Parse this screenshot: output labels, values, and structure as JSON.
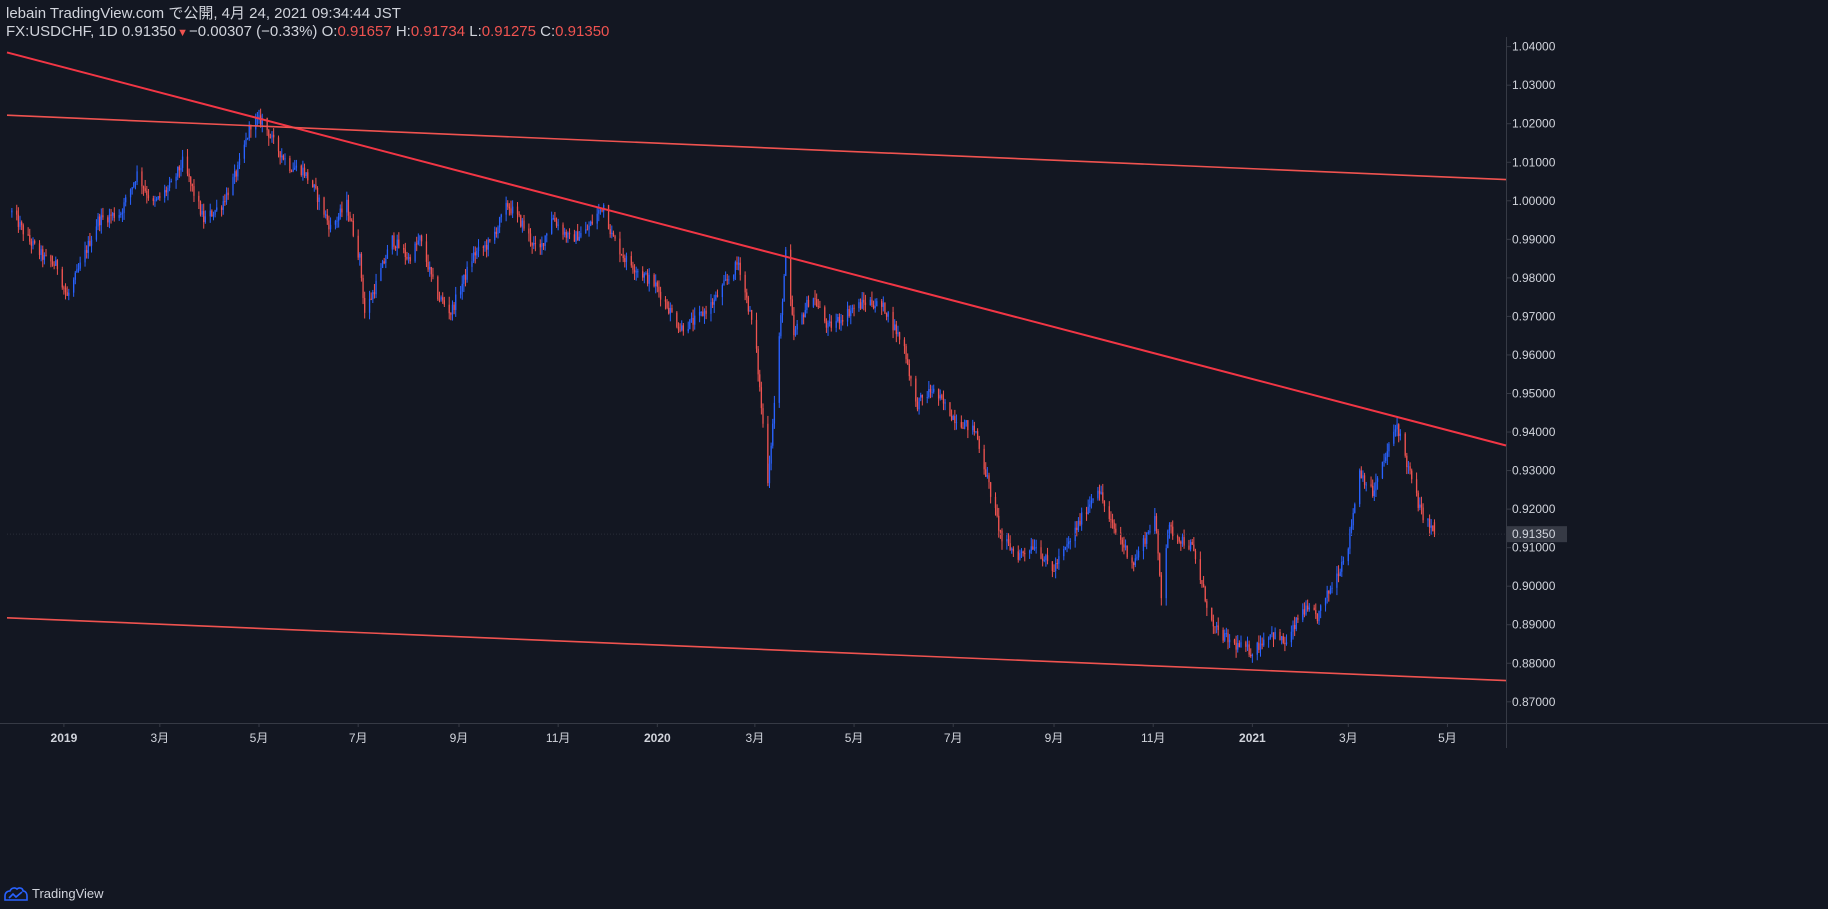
{
  "header": {
    "line1": "lebain TradingView.com で公開, 4月 24, 2021 09:34:44 JST",
    "symbol": "FX:USDCHF, 1D",
    "last": "0.91350",
    "change_arrow": "▼",
    "change": "−0.00307 (−0.33%)",
    "o_label": "O:",
    "o_value": "0.91657",
    "h_label": "H:",
    "h_value": "0.91734",
    "l_label": "L:",
    "l_value": "0.91275",
    "c_label": "C:",
    "c_value": "0.91350"
  },
  "footer": {
    "brand": "TradingView",
    "logo_icon": "tradingview-logo-icon"
  },
  "colors": {
    "background": "#131722",
    "up": "#2962ff",
    "down": "#ef5350",
    "trendline": "#f23645",
    "channel": "#ef5350",
    "grid_line": "#363a45",
    "text": "#d1d4dc"
  },
  "chart_data": {
    "type": "candlestick",
    "symbol": "FX:USDCHF",
    "interval": "1D",
    "grid": false,
    "ylim": [
      0.8645,
      1.0425
    ],
    "xlim": [
      "2018-11-27",
      "2021-06-06"
    ],
    "y_ticks": [
      "1.04000",
      "1.03000",
      "1.02000",
      "1.01000",
      "1.00000",
      "0.99000",
      "0.98000",
      "0.97000",
      "0.96000",
      "0.95000",
      "0.94000",
      "0.93000",
      "0.92000",
      "0.91000",
      "0.90000",
      "0.89000",
      "0.88000",
      "0.87000"
    ],
    "x_ticks": [
      {
        "label": "2019",
        "date": "2019-01-01"
      },
      {
        "label": "3月",
        "date": "2019-03-01"
      },
      {
        "label": "5月",
        "date": "2019-05-01"
      },
      {
        "label": "7月",
        "date": "2019-07-01"
      },
      {
        "label": "9月",
        "date": "2019-09-01"
      },
      {
        "label": "11月",
        "date": "2019-11-01"
      },
      {
        "label": "2020",
        "date": "2020-01-01"
      },
      {
        "label": "3月",
        "date": "2020-03-01"
      },
      {
        "label": "5月",
        "date": "2020-05-01"
      },
      {
        "label": "7月",
        "date": "2020-07-01"
      },
      {
        "label": "9月",
        "date": "2020-09-01"
      },
      {
        "label": "11月",
        "date": "2020-11-01"
      },
      {
        "label": "2021",
        "date": "2021-01-01"
      },
      {
        "label": "3月",
        "date": "2021-03-01"
      },
      {
        "label": "5月",
        "date": "2021-05-01"
      }
    ],
    "last_price": 0.9135,
    "last_price_label": "0.91350",
    "ohlc": {
      "open": 0.91657,
      "high": 0.91734,
      "low": 0.91275,
      "close": 0.9135
    },
    "price_path": [
      [
        "2018-11-30",
        0.997
      ],
      [
        "2018-12-10",
        0.99
      ],
      [
        "2018-12-20",
        0.985
      ],
      [
        "2018-12-28",
        0.983
      ],
      [
        "2019-01-03",
        0.975
      ],
      [
        "2019-01-10",
        0.982
      ],
      [
        "2019-01-22",
        0.995
      ],
      [
        "2019-02-05",
        0.997
      ],
      [
        "2019-02-15",
        1.007
      ],
      [
        "2019-02-25",
        0.999
      ],
      [
        "2019-03-08",
        1.004
      ],
      [
        "2019-03-15",
        1.01
      ],
      [
        "2019-03-28",
        0.995
      ],
      [
        "2019-04-08",
        0.999
      ],
      [
        "2019-04-18",
        1.008
      ],
      [
        "2019-04-26",
        1.02
      ],
      [
        "2019-05-03",
        1.021
      ],
      [
        "2019-05-10",
        1.015
      ],
      [
        "2019-05-20",
        1.009
      ],
      [
        "2019-05-28",
        1.008
      ],
      [
        "2019-06-04",
        1.003
      ],
      [
        "2019-06-14",
        0.993
      ],
      [
        "2019-06-24",
        0.999
      ],
      [
        "2019-07-02",
        0.985
      ],
      [
        "2019-07-05",
        0.971
      ],
      [
        "2019-07-10",
        0.976
      ],
      [
        "2019-07-22",
        0.99
      ],
      [
        "2019-08-01",
        0.985
      ],
      [
        "2019-08-08",
        0.99
      ],
      [
        "2019-08-18",
        0.976
      ],
      [
        "2019-08-27",
        0.971
      ],
      [
        "2019-09-10",
        0.986
      ],
      [
        "2019-09-20",
        0.989
      ],
      [
        "2019-10-01",
        0.999
      ],
      [
        "2019-10-10",
        0.994
      ],
      [
        "2019-10-20",
        0.986
      ],
      [
        "2019-10-28",
        0.996
      ],
      [
        "2019-11-08",
        0.99
      ],
      [
        "2019-11-18",
        0.992
      ],
      [
        "2019-11-29",
        0.999
      ],
      [
        "2019-12-04",
        0.991
      ],
      [
        "2019-12-12",
        0.985
      ],
      [
        "2019-12-31",
        0.978
      ],
      [
        "2020-01-15",
        0.967
      ],
      [
        "2020-01-25",
        0.969
      ],
      [
        "2020-02-05",
        0.974
      ],
      [
        "2020-02-20",
        0.984
      ],
      [
        "2020-03-01",
        0.965
      ],
      [
        "2020-03-09",
        0.928
      ],
      [
        "2020-03-12",
        0.942
      ],
      [
        "2020-03-20",
        0.986
      ],
      [
        "2020-03-25",
        0.965
      ],
      [
        "2020-04-05",
        0.976
      ],
      [
        "2020-04-15",
        0.967
      ],
      [
        "2020-04-30",
        0.972
      ],
      [
        "2020-05-10",
        0.974
      ],
      [
        "2020-05-20",
        0.972
      ],
      [
        "2020-06-01",
        0.962
      ],
      [
        "2020-06-08",
        0.947
      ],
      [
        "2020-06-18",
        0.951
      ],
      [
        "2020-07-01",
        0.944
      ],
      [
        "2020-07-15",
        0.94
      ],
      [
        "2020-07-31",
        0.912
      ],
      [
        "2020-08-10",
        0.908
      ],
      [
        "2020-08-20",
        0.911
      ],
      [
        "2020-08-31",
        0.904
      ],
      [
        "2020-09-10",
        0.911
      ],
      [
        "2020-09-22",
        0.921
      ],
      [
        "2020-09-28",
        0.926
      ],
      [
        "2020-10-05",
        0.917
      ],
      [
        "2020-10-20",
        0.906
      ],
      [
        "2020-11-02",
        0.918
      ],
      [
        "2020-11-06",
        0.898
      ],
      [
        "2020-11-10",
        0.915
      ],
      [
        "2020-11-25",
        0.91
      ],
      [
        "2020-12-08",
        0.889
      ],
      [
        "2020-12-20",
        0.885
      ],
      [
        "2021-01-01",
        0.883
      ],
      [
        "2021-01-12",
        0.888
      ],
      [
        "2021-01-22",
        0.885
      ],
      [
        "2021-02-01",
        0.894
      ],
      [
        "2021-02-10",
        0.892
      ],
      [
        "2021-02-23",
        0.904
      ],
      [
        "2021-03-01",
        0.911
      ],
      [
        "2021-03-08",
        0.93
      ],
      [
        "2021-03-16",
        0.924
      ],
      [
        "2021-03-31",
        0.942
      ],
      [
        "2021-04-06",
        0.932
      ],
      [
        "2021-04-14",
        0.92
      ],
      [
        "2021-04-23",
        0.9135
      ]
    ],
    "trendlines": [
      {
        "name": "descending-resistance",
        "from": [
          "2018-11-27",
          1.0385
        ],
        "to": [
          "2021-06-06",
          0.9365
        ]
      },
      {
        "name": "upper-channel",
        "from": [
          "2018-11-27",
          1.0222
        ],
        "to": [
          "2021-06-06",
          1.0055
        ]
      },
      {
        "name": "lower-channel",
        "from": [
          "2018-11-27",
          0.8918
        ],
        "to": [
          "2021-06-06",
          0.8755
        ]
      }
    ]
  }
}
